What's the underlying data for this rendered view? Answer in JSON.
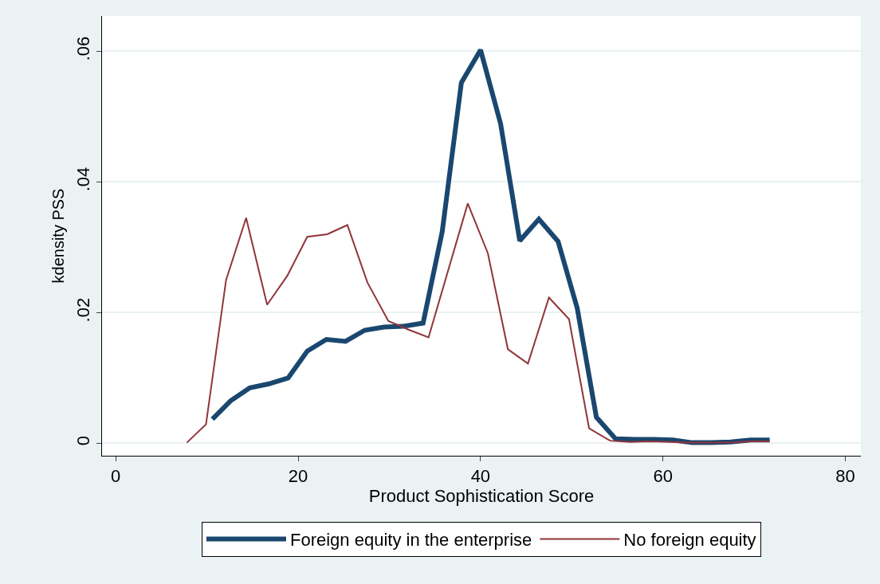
{
  "chart_data": {
    "type": "line",
    "xlabel": "Product Sophistication Score",
    "ylabel": "kdensity PSS",
    "series": [
      {
        "name": "Foreign equity in the enterprise",
        "color": "#1a476f",
        "x": [
          10.6,
          12.6,
          14.7,
          16.8,
          18.9,
          21.0,
          23.1,
          25.2,
          27.3,
          29.4,
          31.5,
          33.7,
          35.8,
          37.9,
          40.0,
          42.2,
          44.3,
          46.4,
          48.5,
          50.6,
          52.7,
          54.8,
          56.9,
          59.0,
          61.1,
          63.2,
          65.3,
          67.4,
          69.6,
          71.7
        ],
        "values": [
          0.0037,
          0.0065,
          0.0085,
          0.0091,
          0.01,
          0.0141,
          0.0159,
          0.0156,
          0.0173,
          0.0178,
          0.0179,
          0.0184,
          0.0324,
          0.0552,
          0.0602,
          0.0489,
          0.031,
          0.0343,
          0.0309,
          0.0207,
          0.004,
          0.0007,
          0.0006,
          0.0006,
          0.0005,
          0.0001,
          0.0001,
          0.0002,
          0.0005,
          0.0005
        ]
      },
      {
        "name": "No foreign equity",
        "color": "#90353b",
        "x": [
          7.8,
          9.9,
          12.1,
          14.3,
          16.6,
          18.8,
          21.0,
          23.2,
          25.4,
          27.6,
          29.9,
          32.1,
          34.3,
          38.6,
          40.8,
          43.0,
          45.2,
          47.5,
          49.7,
          51.9,
          54.2,
          56.4,
          58.6,
          60.8,
          63.0,
          65.2,
          67.4,
          69.6,
          71.7
        ],
        "values": [
          0.0001,
          0.0029,
          0.025,
          0.0345,
          0.0212,
          0.0256,
          0.0316,
          0.032,
          0.0334,
          0.0246,
          0.0187,
          0.0174,
          0.0162,
          0.0367,
          0.0291,
          0.0144,
          0.0122,
          0.0223,
          0.019,
          0.0023,
          0.0004,
          0.0002,
          0.0003,
          0.0002,
          0.0001,
          0.0001,
          0.0001,
          0.0003,
          0.0003
        ]
      }
    ],
    "xlim": [
      -1.5,
      81.7
    ],
    "xticks": [
      0,
      20,
      40,
      60,
      80
    ],
    "ylim": [
      -0.0019,
      0.0654
    ],
    "yticks": [
      {
        "value": 0,
        "label": "0"
      },
      {
        "value": 0.02,
        "label": ".02"
      },
      {
        "value": 0.04,
        "label": ".04"
      },
      {
        "value": 0.06,
        "label": ".06"
      }
    ],
    "grid": "y",
    "legend": "bottom",
    "marker": "none",
    "line_style": "solid"
  }
}
